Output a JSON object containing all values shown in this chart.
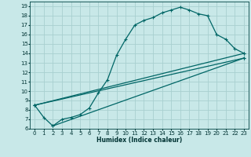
{
  "xlabel": "Humidex (Indice chaleur)",
  "bg_color": "#c8e8e8",
  "grid_color": "#a8d0d0",
  "line_color": "#006666",
  "xlim": [
    -0.5,
    23.5
  ],
  "ylim": [
    6,
    19.5
  ],
  "xticks": [
    0,
    1,
    2,
    3,
    4,
    5,
    6,
    7,
    8,
    9,
    10,
    11,
    12,
    13,
    14,
    15,
    16,
    17,
    18,
    19,
    20,
    21,
    22,
    23
  ],
  "yticks": [
    6,
    7,
    8,
    9,
    10,
    11,
    12,
    13,
    14,
    15,
    16,
    17,
    18,
    19
  ],
  "curve1_x": [
    0,
    1,
    2,
    3,
    4,
    5,
    6,
    7,
    8,
    9,
    10,
    11,
    12,
    13,
    14,
    15,
    16,
    17,
    18,
    19,
    20,
    21,
    22,
    23
  ],
  "curve1_y": [
    8.5,
    7.2,
    6.3,
    7.0,
    7.2,
    7.5,
    8.2,
    9.8,
    11.2,
    13.8,
    15.5,
    17.0,
    17.5,
    17.8,
    18.3,
    18.6,
    18.9,
    18.6,
    18.2,
    18.0,
    16.0,
    15.5,
    14.5,
    14.0
  ],
  "line2_x": [
    0,
    23
  ],
  "line2_y": [
    8.5,
    13.5
  ],
  "line3_x": [
    0,
    23
  ],
  "line3_y": [
    8.5,
    14.0
  ],
  "line4_x": [
    2,
    23
  ],
  "line4_y": [
    6.3,
    13.5
  ]
}
